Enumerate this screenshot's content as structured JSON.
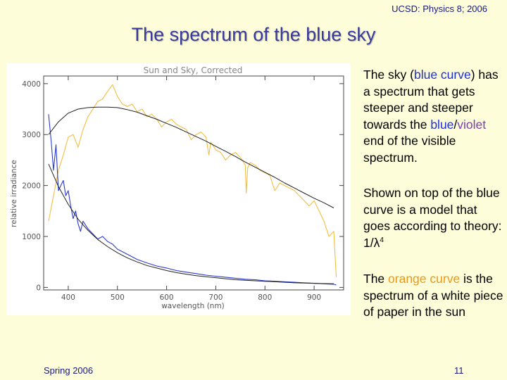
{
  "header": {
    "course": "UCSD: Physics 8; 2006"
  },
  "title": "The spectrum of the blue sky",
  "chart_data": {
    "type": "line",
    "title": "Sun and Sky, Corrected",
    "xlabel": "wavelength (nm)",
    "ylabel": "relative irradiance",
    "xlim": [
      350,
      960
    ],
    "ylim": [
      -50,
      4150
    ],
    "xticks": [
      400,
      500,
      600,
      700,
      800,
      900
    ],
    "yticks": [
      0,
      1000,
      2000,
      3000,
      4000
    ],
    "series": [
      {
        "color": "#f2bf45",
        "x": [
          360,
          370,
          380,
          390,
          400,
          410,
          420,
          430,
          440,
          450,
          460,
          470,
          480,
          490,
          500,
          510,
          520,
          530,
          540,
          550,
          560,
          570,
          580,
          590,
          600,
          610,
          620,
          630,
          640,
          650,
          660,
          670,
          680,
          686,
          690,
          700,
          710,
          720,
          730,
          740,
          750,
          760,
          762,
          765,
          770,
          780,
          790,
          800,
          810,
          820,
          830,
          840,
          850,
          860,
          870,
          880,
          890,
          900,
          910,
          920,
          930,
          940,
          945
        ],
        "y": [
          1300,
          1800,
          2300,
          2600,
          2950,
          3000,
          2750,
          3100,
          3350,
          3500,
          3650,
          3700,
          3850,
          3980,
          3750,
          3600,
          3550,
          3600,
          3450,
          3500,
          3350,
          3400,
          3300,
          3150,
          3250,
          3300,
          3200,
          3150,
          3100,
          2900,
          3000,
          3050,
          2950,
          2600,
          2850,
          2700,
          2650,
          2500,
          2600,
          2650,
          2550,
          2400,
          1850,
          2350,
          2450,
          2400,
          2300,
          2250,
          2200,
          1900,
          2050,
          2000,
          1950,
          1900,
          1800,
          1700,
          1600,
          1700,
          1500,
          1300,
          1000,
          1100,
          200
        ]
      },
      {
        "color": "#2a3acf",
        "x": [
          360,
          365,
          370,
          375,
          380,
          385,
          390,
          395,
          400,
          405,
          410,
          415,
          420,
          425,
          430,
          440,
          450,
          460,
          470,
          480,
          490,
          500,
          520,
          540,
          560,
          580,
          600,
          620,
          640,
          660,
          680,
          700,
          720,
          740,
          760,
          780,
          800,
          820,
          840,
          860,
          880,
          900,
          920,
          940,
          945
        ],
        "y": [
          3400,
          2900,
          2300,
          2800,
          1900,
          2000,
          2100,
          1800,
          1900,
          1600,
          1350,
          1500,
          1250,
          1100,
          1300,
          1150,
          1050,
          950,
          1000,
          900,
          850,
          750,
          650,
          550,
          480,
          420,
          380,
          330,
          300,
          270,
          240,
          220,
          200,
          180,
          160,
          150,
          130,
          120,
          110,
          100,
          90,
          80,
          70,
          60,
          50
        ]
      },
      {
        "color": "#222222",
        "x": [
          360,
          380,
          400,
          420,
          440,
          460,
          480,
          500,
          520,
          540,
          560,
          580,
          600,
          620,
          640,
          660,
          680,
          700,
          720,
          740,
          760,
          780,
          800,
          820,
          840,
          860,
          880,
          900,
          920,
          940
        ],
        "y": [
          3000,
          3250,
          3420,
          3500,
          3530,
          3540,
          3540,
          3530,
          3490,
          3440,
          3370,
          3300,
          3220,
          3140,
          3050,
          2960,
          2870,
          2770,
          2670,
          2570,
          2460,
          2360,
          2260,
          2160,
          2050,
          1950,
          1850,
          1750,
          1660,
          1560
        ]
      },
      {
        "color": "#222222",
        "x": [
          360,
          380,
          400,
          420,
          440,
          460,
          480,
          500,
          520,
          540,
          560,
          580,
          600,
          620,
          640,
          660,
          680,
          700,
          720,
          740,
          760,
          780,
          800,
          820,
          840,
          860,
          880,
          900,
          920,
          940
        ],
        "y": [
          2420,
          1980,
          1630,
          1340,
          1120,
          940,
          800,
          680,
          580,
          500,
          430,
          380,
          330,
          290,
          260,
          230,
          210,
          190,
          170,
          150,
          140,
          130,
          120,
          110,
          100,
          90,
          85,
          80,
          75,
          70
        ]
      }
    ]
  },
  "text": {
    "p1": {
      "a": "The sky (",
      "blue_curve": "blue curve",
      "b": ") has a spectrum that gets steeper and steeper towards the ",
      "blue": "blue",
      "slash": "/",
      "violet": "violet",
      "c": " end of the visible spectrum."
    },
    "p2": {
      "a": "Shown on top of the blue curve is a model that goes according to theory: 1/",
      "lambda": "λ",
      "exp": "4"
    },
    "p3": {
      "a": "The ",
      "orange_curve": "orange curve",
      "b": " is the spectrum of a white piece of paper in the sun"
    }
  },
  "footer": {
    "left": "Spring 2006",
    "page": "11"
  },
  "colors": {
    "background": "#fdfdd9",
    "title": "#3a3a9c",
    "blue": "#1f2fd6",
    "violet": "#7a3db8",
    "orange": "#e89a1c"
  }
}
